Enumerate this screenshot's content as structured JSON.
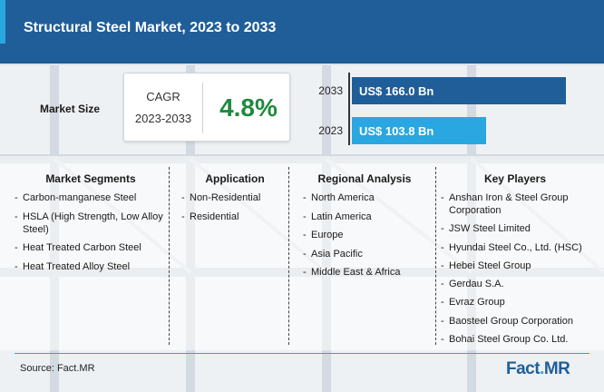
{
  "header": {
    "title": "Structural Steel Market, 2023 to 2033"
  },
  "market_size": {
    "label": "Market Size",
    "cagr_label": "CAGR",
    "cagr_period": "2023-2033",
    "cagr_value": "4.8%",
    "bars": [
      {
        "year": "2033",
        "value_text": "US$ 166.0 Bn",
        "value": 166.0
      },
      {
        "year": "2023",
        "value_text": "US$ 103.8 Bn",
        "value": 103.8
      }
    ]
  },
  "columns": {
    "segments": {
      "title": "Market Segments",
      "items": [
        "Carbon-manganese Steel",
        "HSLA (High Strength, Low Alloy Steel)",
        "Heat Treated Carbon Steel",
        "Heat Treated Alloy Steel"
      ]
    },
    "application": {
      "title": "Application",
      "items": [
        "Non-Residential",
        "Residential"
      ]
    },
    "regional": {
      "title": "Regional Analysis",
      "items": [
        "North America",
        "Latin America",
        "Europe",
        "Asia Pacific",
        "Middle East & Africa"
      ]
    },
    "players": {
      "title": "Key Players",
      "items": [
        "Anshan Iron & Steel Group Corporation",
        "JSW Steel Limited",
        "Hyundai Steel Co., Ltd. (HSC)",
        "Hebei Steel Group",
        "Gerdau S.A.",
        "Evraz Group",
        "Baosteel Group Corporation",
        "Bohai Steel Group Co. Ltd."
      ]
    }
  },
  "footer": {
    "source": "Source: Fact.MR",
    "logo_main": "Fact",
    "logo_dot": ".",
    "logo_suffix": "MR"
  },
  "colors": {
    "header": "#1f5e99",
    "bar_2033": "#1f5e99",
    "bar_2023": "#2aa7e0",
    "cagr": "#1f8a3e"
  }
}
